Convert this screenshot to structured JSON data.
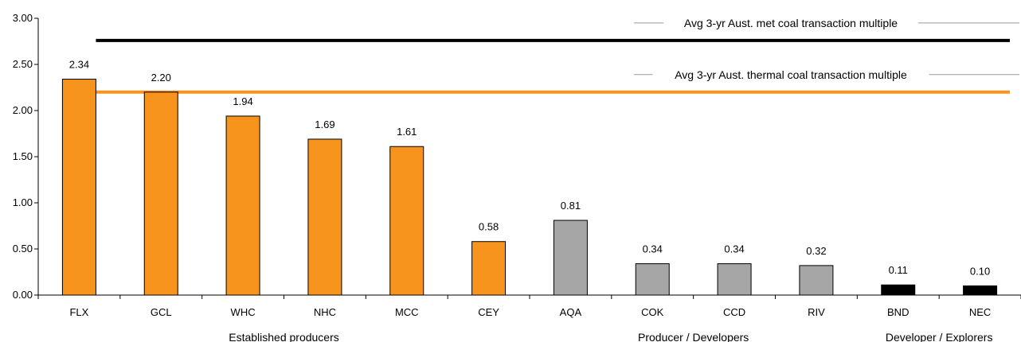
{
  "chart_data": {
    "type": "bar",
    "categories": [
      "FLX",
      "GCL",
      "WHC",
      "NHC",
      "MCC",
      "CEY",
      "AQA",
      "COK",
      "CCD",
      "RIV",
      "BND",
      "NEC"
    ],
    "values": [
      2.34,
      2.2,
      1.94,
      1.69,
      1.61,
      0.58,
      0.81,
      0.34,
      0.34,
      0.32,
      0.11,
      0.1
    ],
    "value_labels": [
      "2.34",
      "2.20",
      "1.94",
      "1.69",
      "1.61",
      "0.58",
      "0.81",
      "0.34",
      "0.34",
      "0.32",
      "0.11",
      "0.10"
    ],
    "groups": [
      {
        "label": "Established producers",
        "categories": [
          "FLX",
          "GCL",
          "WHC",
          "NHC",
          "MCC",
          "CEY"
        ],
        "color": "#F7941D"
      },
      {
        "label": "Producer / Developers",
        "categories": [
          "AQA",
          "COK",
          "CCD",
          "RIV"
        ],
        "color": "#A6A6A6"
      },
      {
        "label": "Developer / Explorers",
        "categories": [
          "BND",
          "NEC"
        ],
        "color": "#000000"
      }
    ],
    "ylim": [
      0,
      3.0
    ],
    "yticks": [
      0,
      0.5,
      1.0,
      1.5,
      2.0,
      2.5,
      3.0
    ],
    "ytick_labels": [
      "0.00",
      "0.50",
      "1.00",
      "1.50",
      "2.00",
      "2.50",
      "3.00"
    ],
    "reference_lines": [
      {
        "label": "Avg 3-yr Aust. met coal transaction multiple",
        "value": 2.76,
        "color": "#000000"
      },
      {
        "label": "Avg 3-yr Aust. thermal coal transaction multiple",
        "value": 2.2,
        "color": "#F7941D"
      }
    ],
    "grid": false,
    "title": "",
    "xlabel": "",
    "ylabel": ""
  }
}
